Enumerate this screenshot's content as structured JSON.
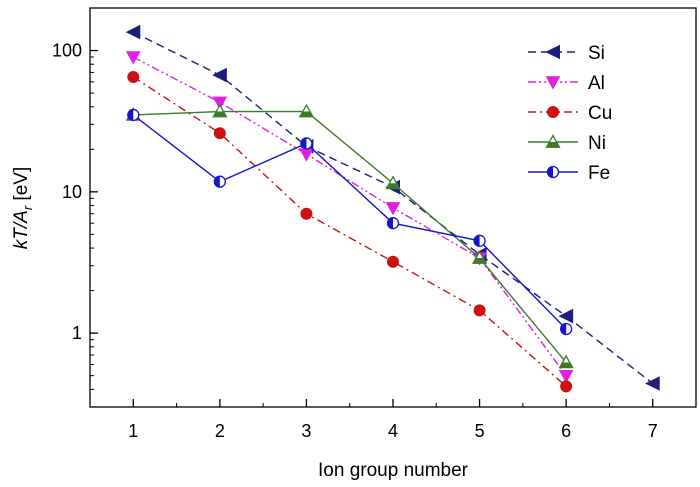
{
  "chart_data": {
    "type": "line",
    "xlabel": "Ion group number",
    "ylabel": {
      "main": "kT/A",
      "sub": "r",
      "unit": " [eV]"
    },
    "x_scale": "linear",
    "y_scale": "log",
    "xlim": [
      0.5,
      7.5
    ],
    "ylim": [
      0.3,
      200
    ],
    "x_ticks": [
      1,
      2,
      3,
      4,
      5,
      6,
      7
    ],
    "x_tick_labels": [
      "1",
      "2",
      "3",
      "4",
      "5",
      "6",
      "7"
    ],
    "y_ticks": [
      1,
      10,
      100
    ],
    "y_tick_labels": [
      "1",
      "10",
      "100"
    ],
    "legend_position": "top-right",
    "series": [
      {
        "name": "Si",
        "color": "#1f1f7a",
        "marker": "triangle-left",
        "line": "dashed",
        "x": [
          1,
          2,
          3,
          4,
          5,
          6,
          7
        ],
        "y": [
          135,
          67,
          21,
          10.8,
          3.6,
          1.32,
          0.44
        ]
      },
      {
        "name": "Al",
        "color": "#e020e0",
        "marker": "triangle-down",
        "line": "dash-dot-dot",
        "x": [
          1,
          2,
          3,
          4,
          5,
          6
        ],
        "y": [
          90,
          43,
          18.5,
          7.7,
          3.4,
          0.5
        ]
      },
      {
        "name": "Cu",
        "color": "#cc1111",
        "marker": "circle",
        "line": "dash-dot",
        "x": [
          1,
          2,
          3,
          4,
          5,
          6
        ],
        "y": [
          65,
          26,
          7,
          3.2,
          1.45,
          0.42
        ]
      },
      {
        "name": "Ni",
        "color": "#3c7a2a",
        "marker": "triangle-up",
        "line": "solid",
        "x": [
          1,
          2,
          3,
          4,
          5,
          6
        ],
        "y": [
          35,
          37,
          37,
          11.5,
          3.4,
          0.62
        ]
      },
      {
        "name": "Fe",
        "color": "#1414cc",
        "marker": "half-circle",
        "line": "solid",
        "x": [
          1,
          2,
          3,
          4,
          5,
          6
        ],
        "y": [
          35,
          11.8,
          22,
          6,
          4.5,
          1.07
        ]
      }
    ]
  }
}
